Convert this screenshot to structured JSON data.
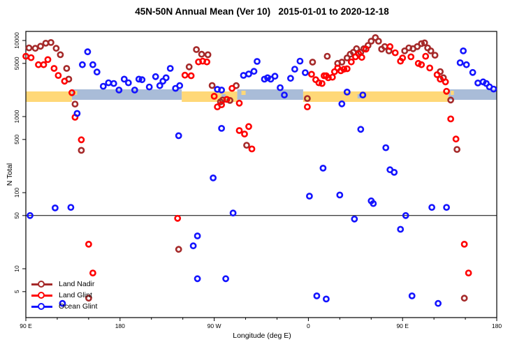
{
  "title": "45N-50N Annual Mean (Ver 10)   2015-01-01 to 2020-12-18",
  "axes": {
    "xlabel": "Longitude (deg E)",
    "ylabel": "N Total"
  },
  "legend": {
    "items": [
      {
        "label": "Land Nadir",
        "color": "#A52A2A"
      },
      {
        "label": "Land Glint",
        "color": "#FF0000"
      },
      {
        "label": "Ocean Glint",
        "color": "#1414FF"
      }
    ]
  },
  "chart_data": {
    "type": "scatter",
    "title": "45N-50N Annual Mean (Ver 10)   2015-01-01 to 2020-12-18",
    "xlabel": "Longitude (deg E)",
    "ylabel": "N Total",
    "y_scale": "log",
    "x_domain": [
      90,
      540
    ],
    "y_domain": [
      2.3,
      13000
    ],
    "x_major_ticks": [
      {
        "lon": 90,
        "label": "90 E"
      },
      {
        "lon": 180,
        "label": "180"
      },
      {
        "lon": 270,
        "label": "90 W"
      },
      {
        "lon": 360,
        "label": "0"
      },
      {
        "lon": 450,
        "label": "90 E"
      },
      {
        "lon": 540,
        "label": "180"
      }
    ],
    "x_minor_ticks": [
      120,
      150,
      210,
      240,
      300,
      330,
      390,
      420,
      480,
      510
    ],
    "y_ticks": [
      {
        "value": 10000,
        "label": "10000"
      },
      {
        "value": 5000,
        "label": "5000"
      },
      {
        "value": 1000,
        "label": "1000"
      },
      {
        "value": 500,
        "label": "500"
      },
      {
        "value": 100,
        "label": "100"
      },
      {
        "value": 50,
        "label": "50"
      },
      {
        "value": 10,
        "label": "10"
      },
      {
        "value": 5,
        "label": "5"
      }
    ],
    "reference_line": {
      "value": 50,
      "color": "#000000"
    },
    "surface_strip": {
      "note": "land/ocean mask band drawn across the plot near N=1900",
      "land_color": "#FFD878",
      "ocean_color": "#A9BCD8",
      "segments": [
        {
          "from": 90,
          "to": 134,
          "surface": "land"
        },
        {
          "from": 134,
          "to": 239,
          "surface": "ocean"
        },
        {
          "from": 239,
          "to": 292,
          "surface": "land"
        },
        {
          "from": 292,
          "to": 355,
          "surface": "ocean"
        },
        {
          "from": 355,
          "to": 494,
          "surface": "land"
        },
        {
          "from": 494,
          "to": 540,
          "surface": "ocean"
        }
      ],
      "details": [
        {
          "from": 136,
          "to": 139,
          "surface": "land"
        },
        {
          "from": 296,
          "to": 300,
          "surface": "land"
        },
        {
          "from": 496,
          "to": 499,
          "surface": "land"
        },
        {
          "from": 277,
          "to": 281,
          "surface": "ocean"
        },
        {
          "from": 407,
          "to": 410,
          "surface": "ocean"
        }
      ]
    },
    "series": [
      {
        "name": "Land Nadir",
        "color": "#A52A2A",
        "points": [
          [
            93,
            8000
          ],
          [
            99,
            7900
          ],
          [
            104,
            8400
          ],
          [
            109,
            9200
          ],
          [
            114,
            9400
          ],
          [
            119,
            7900
          ],
          [
            123,
            6500
          ],
          [
            129,
            4300
          ],
          [
            131,
            3100
          ],
          [
            137,
            1460
          ],
          [
            143,
            360
          ],
          [
            150,
            4.1
          ],
          [
            236,
            18
          ],
          [
            246,
            4500
          ],
          [
            253,
            7600
          ],
          [
            258,
            6600
          ],
          [
            264,
            6500
          ],
          [
            268,
            2560
          ],
          [
            276,
            1560
          ],
          [
            278,
            1650
          ],
          [
            285,
            1630
          ],
          [
            291,
            2550
          ],
          [
            301,
            420
          ],
          [
            359,
            1730
          ],
          [
            364,
            5200
          ],
          [
            378,
            6200
          ],
          [
            388,
            5000
          ],
          [
            392,
            5200
          ],
          [
            397,
            5900
          ],
          [
            400,
            6600
          ],
          [
            403,
            7000
          ],
          [
            406,
            7800
          ],
          [
            410,
            7000
          ],
          [
            413,
            7800
          ],
          [
            417,
            8600
          ],
          [
            420,
            9800
          ],
          [
            424,
            10900
          ],
          [
            427,
            9800
          ],
          [
            430,
            7700
          ],
          [
            433,
            8300
          ],
          [
            437,
            7300
          ],
          [
            452,
            7300
          ],
          [
            456,
            8000
          ],
          [
            460,
            7800
          ],
          [
            464,
            8300
          ],
          [
            468,
            9100
          ],
          [
            471,
            9300
          ],
          [
            474,
            8000
          ],
          [
            477,
            7300
          ],
          [
            481,
            6400
          ],
          [
            486,
            3900
          ],
          [
            489,
            3240
          ],
          [
            496,
            1650
          ],
          [
            502,
            370
          ],
          [
            509,
            4.1
          ]
        ]
      },
      {
        "name": "Land Glint",
        "color": "#FF0000",
        "points": [
          [
            90,
            6200
          ],
          [
            95,
            5950
          ],
          [
            102,
            4800
          ],
          [
            107,
            4800
          ],
          [
            111,
            5600
          ],
          [
            117,
            4300
          ],
          [
            121,
            3470
          ],
          [
            127,
            2920
          ],
          [
            134,
            2060
          ],
          [
            137,
            980
          ],
          [
            143,
            495
          ],
          [
            150,
            21
          ],
          [
            154,
            8.8
          ],
          [
            235,
            46
          ],
          [
            242,
            3500
          ],
          [
            248,
            3440
          ],
          [
            255,
            5230
          ],
          [
            259,
            5350
          ],
          [
            263,
            5230
          ],
          [
            270,
            1850
          ],
          [
            273,
            1340
          ],
          [
            277,
            1430
          ],
          [
            282,
            1680
          ],
          [
            287,
            2350
          ],
          [
            294,
            1500
          ],
          [
            294,
            655
          ],
          [
            299,
            590
          ],
          [
            303,
            740
          ],
          [
            306,
            375
          ],
          [
            359,
            1340
          ],
          [
            363,
            3600
          ],
          [
            367,
            3050
          ],
          [
            370,
            2780
          ],
          [
            373,
            2720
          ],
          [
            375,
            3440
          ],
          [
            377,
            3440
          ],
          [
            379,
            3240
          ],
          [
            383,
            3290
          ],
          [
            385,
            3890
          ],
          [
            388,
            4350
          ],
          [
            391,
            4000
          ],
          [
            394,
            4200
          ],
          [
            397,
            4250
          ],
          [
            401,
            5230
          ],
          [
            405,
            6100
          ],
          [
            408,
            6700
          ],
          [
            411,
            6000
          ],
          [
            415,
            7700
          ],
          [
            438,
            8300
          ],
          [
            443,
            6900
          ],
          [
            448,
            5350
          ],
          [
            450,
            5900
          ],
          [
            458,
            6100
          ],
          [
            465,
            5000
          ],
          [
            468,
            4800
          ],
          [
            472,
            6200
          ],
          [
            476,
            4350
          ],
          [
            483,
            3550
          ],
          [
            486,
            3100
          ],
          [
            491,
            2860
          ],
          [
            492,
            2150
          ],
          [
            496,
            930
          ],
          [
            501,
            506
          ],
          [
            509,
            21
          ],
          [
            513,
            8.8
          ]
        ]
      },
      {
        "name": "Ocean Glint",
        "color": "#1414FF",
        "points": [
          [
            94,
            50
          ],
          [
            118,
            63
          ],
          [
            125,
            3.5
          ],
          [
            133,
            64
          ],
          [
            139,
            1100
          ],
          [
            144,
            4800
          ],
          [
            149,
            7100
          ],
          [
            154,
            4800
          ],
          [
            158,
            3850
          ],
          [
            164,
            2500
          ],
          [
            169,
            2780
          ],
          [
            174,
            2720
          ],
          [
            179,
            2230
          ],
          [
            184,
            3100
          ],
          [
            188,
            2780
          ],
          [
            194,
            2230
          ],
          [
            198,
            3100
          ],
          [
            201,
            3050
          ],
          [
            208,
            2450
          ],
          [
            214,
            3350
          ],
          [
            218,
            2550
          ],
          [
            221,
            2920
          ],
          [
            224,
            3240
          ],
          [
            228,
            4300
          ],
          [
            233,
            2350
          ],
          [
            236,
            560
          ],
          [
            237,
            2550
          ],
          [
            250,
            20
          ],
          [
            254,
            27
          ],
          [
            254,
            7.4
          ],
          [
            269,
            156
          ],
          [
            273,
            2280
          ],
          [
            277,
            2230
          ],
          [
            277,
            700
          ],
          [
            281,
            7.4
          ],
          [
            288,
            54
          ],
          [
            298,
            3480
          ],
          [
            303,
            3630
          ],
          [
            308,
            3930
          ],
          [
            311,
            5310
          ],
          [
            318,
            3100
          ],
          [
            321,
            3240
          ],
          [
            324,
            3100
          ],
          [
            328,
            3390
          ],
          [
            333,
            2400
          ],
          [
            337,
            1920
          ],
          [
            343,
            3180
          ],
          [
            347,
            4200
          ],
          [
            352,
            5350
          ],
          [
            357,
            3780
          ],
          [
            361,
            90
          ],
          [
            368,
            4.4
          ],
          [
            374,
            210
          ],
          [
            377,
            4.0
          ],
          [
            390,
            93
          ],
          [
            392,
            1470
          ],
          [
            397,
            2100
          ],
          [
            404,
            45
          ],
          [
            410,
            680
          ],
          [
            412,
            1920
          ],
          [
            420,
            78
          ],
          [
            422,
            72
          ],
          [
            434,
            390
          ],
          [
            438,
            200
          ],
          [
            442,
            185
          ],
          [
            448,
            33
          ],
          [
            453,
            50
          ],
          [
            459,
            4.4
          ],
          [
            478,
            64
          ],
          [
            484,
            3.5
          ],
          [
            492,
            64
          ],
          [
            505,
            5100
          ],
          [
            508,
            7300
          ],
          [
            511,
            4800
          ],
          [
            517,
            3800
          ],
          [
            522,
            2760
          ],
          [
            527,
            2860
          ],
          [
            530,
            2720
          ],
          [
            533,
            2460
          ],
          [
            537,
            2300
          ]
        ]
      }
    ],
    "legend_position": "bottom-left inside plot"
  }
}
